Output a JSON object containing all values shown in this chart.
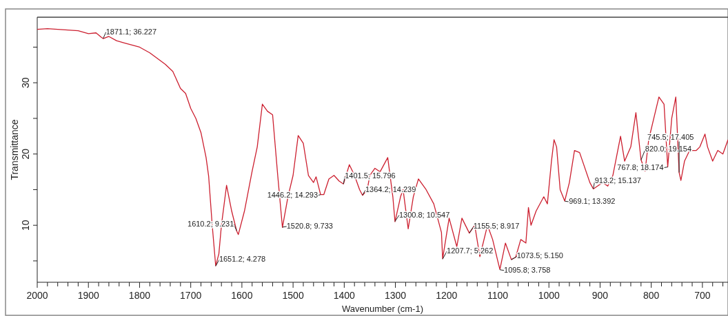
{
  "chart_data": {
    "type": "line",
    "xlabel": "Wavenumber (cm-1)",
    "ylabel": "Transmittance",
    "xlim": [
      2000,
      650
    ],
    "ylim": [
      2,
      39.2
    ],
    "xticks": [
      2000,
      {
        "value": 1980,
        "label": null
      },
      {
        "value": 1960,
        "label": null
      },
      {
        "value": 1940,
        "label": null
      },
      {
        "value": 1920,
        "label": null
      },
      1900,
      {
        "value": 1880,
        "label": null
      },
      {
        "value": 1860,
        "label": null
      },
      {
        "value": 1840,
        "label": null
      },
      {
        "value": 1820,
        "label": null
      },
      1800,
      {
        "value": 1780,
        "label": null
      },
      {
        "value": 1760,
        "label": null
      },
      {
        "value": 1740,
        "label": null
      },
      {
        "value": 1720,
        "label": null
      },
      1700,
      {
        "value": 1680,
        "label": null
      },
      {
        "value": 1660,
        "label": null
      },
      {
        "value": 1640,
        "label": null
      },
      {
        "value": 1620,
        "label": null
      },
      1600,
      {
        "value": 1580,
        "label": null
      },
      {
        "value": 1560,
        "label": null
      },
      {
        "value": 1540,
        "label": null
      },
      {
        "value": 1520,
        "label": null
      },
      1500,
      {
        "value": 1480,
        "label": null
      },
      {
        "value": 1460,
        "label": null
      },
      {
        "value": 1440,
        "label": null
      },
      {
        "value": 1420,
        "label": null
      },
      1400,
      {
        "value": 1380,
        "label": null
      },
      {
        "value": 1360,
        "label": null
      },
      {
        "value": 1340,
        "label": null
      },
      {
        "value": 1320,
        "label": null
      },
      1300,
      {
        "value": 1280,
        "label": null
      },
      {
        "value": 1260,
        "label": null
      },
      {
        "value": 1240,
        "label": null
      },
      {
        "value": 1220,
        "label": null
      },
      1200,
      {
        "value": 1180,
        "label": null
      },
      {
        "value": 1160,
        "label": null
      },
      {
        "value": 1140,
        "label": null
      },
      {
        "value": 1120,
        "label": null
      },
      1100,
      {
        "value": 1080,
        "label": null
      },
      {
        "value": 1060,
        "label": null
      },
      {
        "value": 1040,
        "label": null
      },
      {
        "value": 1020,
        "label": null
      },
      1000,
      {
        "value": 980,
        "label": null
      },
      {
        "value": 960,
        "label": null
      },
      {
        "value": 940,
        "label": null
      },
      {
        "value": 920,
        "label": null
      },
      900,
      {
        "value": 880,
        "label": null
      },
      {
        "value": 860,
        "label": null
      },
      {
        "value": 840,
        "label": null
      },
      {
        "value": 820,
        "label": null
      },
      800,
      {
        "value": 780,
        "label": null
      },
      {
        "value": 760,
        "label": null
      },
      {
        "value": 740,
        "label": null
      },
      {
        "value": 720,
        "label": null
      },
      700,
      {
        "value": 680,
        "label": null
      },
      {
        "value": 660,
        "label": null
      }
    ],
    "yticks": [
      {
        "value": 5,
        "label": null
      },
      10,
      {
        "value": 15,
        "label": null
      },
      20,
      {
        "value": 25,
        "label": null
      },
      30,
      {
        "value": 35,
        "label": null
      }
    ],
    "grid": false,
    "marker": "none",
    "line_style": "solid",
    "series": [
      {
        "color": "#cc1f2f",
        "x": [
          2000,
          1980,
          1960,
          1940,
          1920,
          1900,
          1885,
          1875,
          1871.1,
          1860,
          1845,
          1830,
          1800,
          1780,
          1750,
          1735,
          1720,
          1710,
          1700,
          1690,
          1680,
          1670,
          1665,
          1658,
          1651.2,
          1645,
          1640,
          1630,
          1620,
          1610.2,
          1607,
          1595,
          1580,
          1570,
          1560,
          1550,
          1540,
          1530,
          1520.8,
          1510,
          1500,
          1490,
          1480,
          1470,
          1460,
          1455,
          1446.2,
          1440,
          1430,
          1420,
          1410,
          1401.5,
          1390,
          1380,
          1370,
          1364.2,
          1355,
          1350,
          1340,
          1330,
          1315,
          1305,
          1300.8,
          1290,
          1285,
          1275,
          1265,
          1255,
          1240,
          1225,
          1210,
          1207.7,
          1195,
          1180,
          1170,
          1155.5,
          1145,
          1135,
          1120,
          1110,
          1100,
          1095.8,
          1085,
          1073.5,
          1065,
          1055,
          1045,
          1040,
          1035,
          1025,
          1010,
          1003,
          995,
          990,
          985,
          978,
          969.1,
          960,
          950,
          940,
          920,
          913.2,
          905,
          895,
          885,
          875,
          860,
          852,
          840,
          830,
          820,
          812,
          805,
          795,
          785,
          775,
          767.8,
          760,
          752,
          745.5,
          742,
          735,
          725,
          712,
          705,
          695,
          690,
          680,
          670,
          660,
          650
        ],
        "values": [
          37.5,
          37.6,
          37.5,
          37.4,
          37.3,
          36.9,
          37,
          36.4,
          36.2,
          36.5,
          35.9,
          35.6,
          35,
          34.2,
          32.6,
          31.6,
          29.2,
          28.5,
          26.4,
          25,
          23,
          19.5,
          16.9,
          10,
          4.3,
          6,
          10,
          15.6,
          12,
          9.2,
          8.7,
          12,
          17.6,
          21,
          27,
          26,
          25.5,
          17,
          9.7,
          14,
          17,
          22.6,
          21.5,
          17,
          16,
          16.8,
          14.3,
          14.3,
          16.5,
          17,
          16.2,
          15.8,
          18.5,
          17,
          15,
          14.2,
          15,
          17,
          18,
          17.5,
          19.5,
          14,
          10.5,
          14,
          15,
          9.5,
          14,
          16.5,
          15,
          13,
          9,
          5.3,
          11,
          7,
          11,
          8.9,
          10,
          5.6,
          10,
          8,
          5,
          3.8,
          7.5,
          5.2,
          5.5,
          8,
          7.5,
          12.5,
          10,
          12,
          14,
          13,
          19,
          22,
          21,
          15,
          13.4,
          16,
          20.5,
          20.2,
          16,
          15.1,
          15.5,
          16,
          15.5,
          17,
          22.5,
          19,
          21,
          25.8,
          19.2,
          17.6,
          22,
          25,
          28,
          27,
          18.2,
          25,
          28,
          17.4,
          16.3,
          19,
          20.5,
          20.5,
          21,
          22.8,
          21,
          19,
          20.5,
          20,
          22
        ]
      }
    ],
    "annotations": [
      {
        "text": "1871.1; 36.227",
        "x": 1871.1,
        "y": 36.227
      },
      {
        "text": "1610.2; 9.231",
        "x": 1610.2,
        "y": 9.231
      },
      {
        "text": "1651.2; 4.278",
        "x": 1651.2,
        "y": 4.278
      },
      {
        "text": "1446.2; 14.293",
        "x": 1446.2,
        "y": 14.293
      },
      {
        "text": "1520.8; 9.733",
        "x": 1520.8,
        "y": 9.733
      },
      {
        "text": "1401.5; 15.796",
        "x": 1401.5,
        "y": 15.796
      },
      {
        "text": "1364.2; 14.239",
        "x": 1364.2,
        "y": 14.239
      },
      {
        "text": "1300.8; 10.547",
        "x": 1300.8,
        "y": 10.547
      },
      {
        "text": "1155.5; 8.917",
        "x": 1155.5,
        "y": 8.917
      },
      {
        "text": "1207.7; 5.262",
        "x": 1207.7,
        "y": 5.262
      },
      {
        "text": "1073.5; 5.150",
        "x": 1073.5,
        "y": 5.15
      },
      {
        "text": "1095.8; 3.758",
        "x": 1095.8,
        "y": 3.758
      },
      {
        "text": "969.1; 13.392",
        "x": 969.1,
        "y": 13.392
      },
      {
        "text": "913.2; 15.137",
        "x": 913.2,
        "y": 15.137
      },
      {
        "text": "767.8; 18.174",
        "x": 767.8,
        "y": 18.174
      },
      {
        "text": "820.0; 19.154",
        "x": 820.0,
        "y": 19.154
      },
      {
        "text": "745.5; 17.405",
        "x": 745.5,
        "y": 17.405
      }
    ]
  }
}
